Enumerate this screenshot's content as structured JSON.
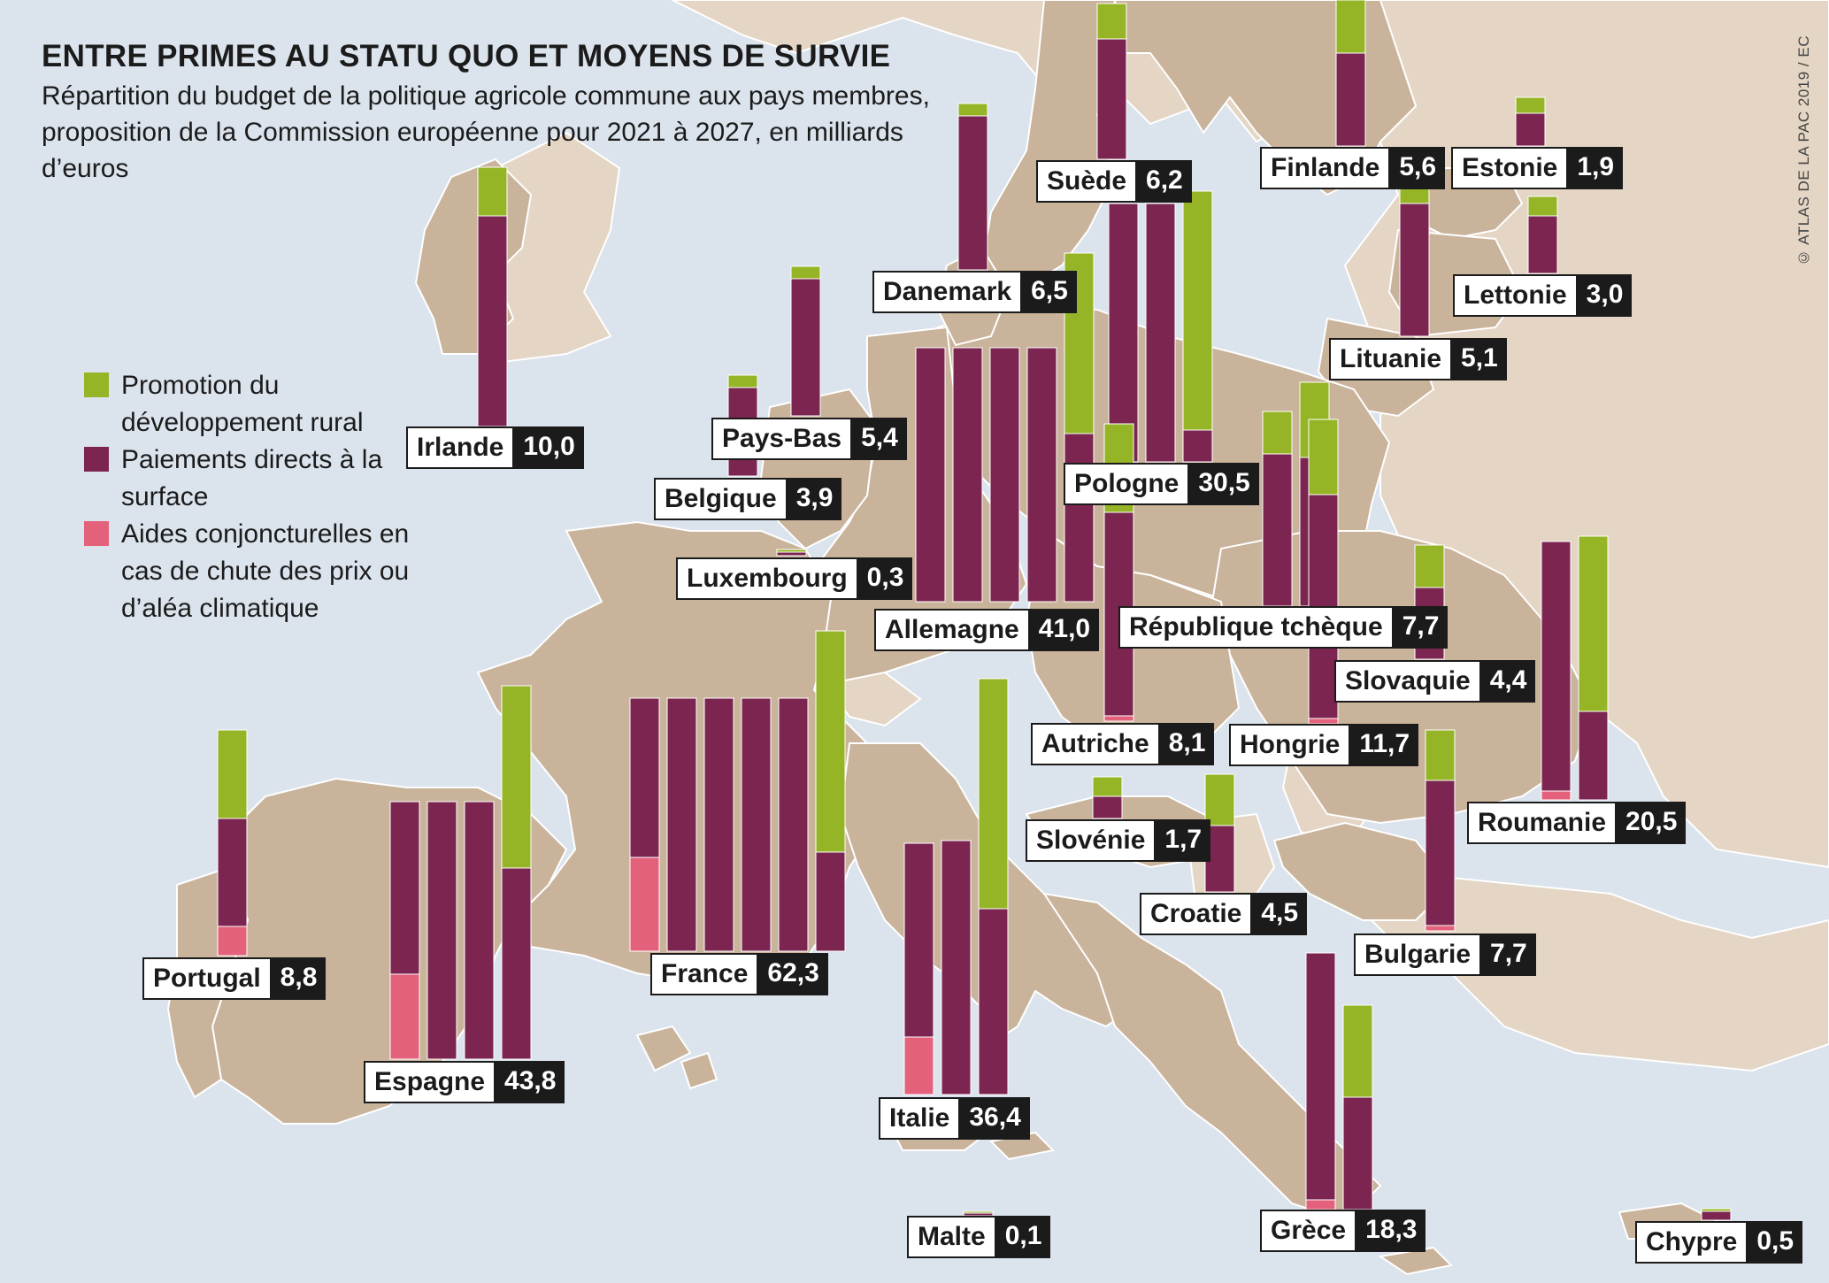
{
  "title": "ENTRE PRIMES AU STATU QUO ET MOYENS DE SURVIE",
  "subtitle": "Répartition du budget de la politique agricole commune aux pays membres, proposition de la Commission européenne pour 2021 à 2027, en milliards d’euros",
  "credit": "© ATLAS DE LA PAC 2019 / EC",
  "colors": {
    "rural": "#95b526",
    "direct": "#7b2550",
    "aid": "#e3617a",
    "land": "#c9b39b",
    "land_light": "#e4d5c4",
    "sea": "#dbe3ec"
  },
  "legend": [
    {
      "key": "rural",
      "label": "Promotion du développement rural"
    },
    {
      "key": "direct",
      "label": "Paiements directs à la surface"
    },
    {
      "key": "aid",
      "label": "Aides conjoncturelles en cas de chute des prix ou d’aléa climatique"
    }
  ],
  "chart_data": {
    "type": "bar",
    "stack_order": [
      "aid",
      "direct",
      "rural"
    ],
    "countries": [
      {
        "name": "Irlande",
        "total": "10,0"
      },
      {
        "name": "Pays-Bas",
        "total": "5,4"
      },
      {
        "name": "Belgique",
        "total": "3,9"
      },
      {
        "name": "Luxembourg",
        "total": "0,3"
      },
      {
        "name": "Danemark",
        "total": "6,5"
      },
      {
        "name": "Suède",
        "total": "6,2"
      },
      {
        "name": "Finlande",
        "total": "5,6"
      },
      {
        "name": "Estonie",
        "total": "1,9"
      },
      {
        "name": "Lettonie",
        "total": "3,0"
      },
      {
        "name": "Lituanie",
        "total": "5,1"
      },
      {
        "name": "Pologne",
        "total": "30,5"
      },
      {
        "name": "Allemagne",
        "total": "41,0"
      },
      {
        "name": "République tchèque",
        "total": "7,7"
      },
      {
        "name": "Slovaquie",
        "total": "4,4"
      },
      {
        "name": "Autriche",
        "total": "8,1"
      },
      {
        "name": "Hongrie",
        "total": "11,7"
      },
      {
        "name": "Roumanie",
        "total": "20,5"
      },
      {
        "name": "Slovénie",
        "total": "1,7"
      },
      {
        "name": "Croatie",
        "total": "4,5"
      },
      {
        "name": "Bulgarie",
        "total": "7,7"
      },
      {
        "name": "Portugal",
        "total": "8,8"
      },
      {
        "name": "Espagne",
        "total": "43,8"
      },
      {
        "name": "France",
        "total": "62,3"
      },
      {
        "name": "Italie",
        "total": "36,4"
      },
      {
        "name": "Grèce",
        "total": "18,3"
      },
      {
        "name": "Malte",
        "total": "0,1"
      },
      {
        "name": "Chypre",
        "total": "0,5"
      }
    ]
  }
}
